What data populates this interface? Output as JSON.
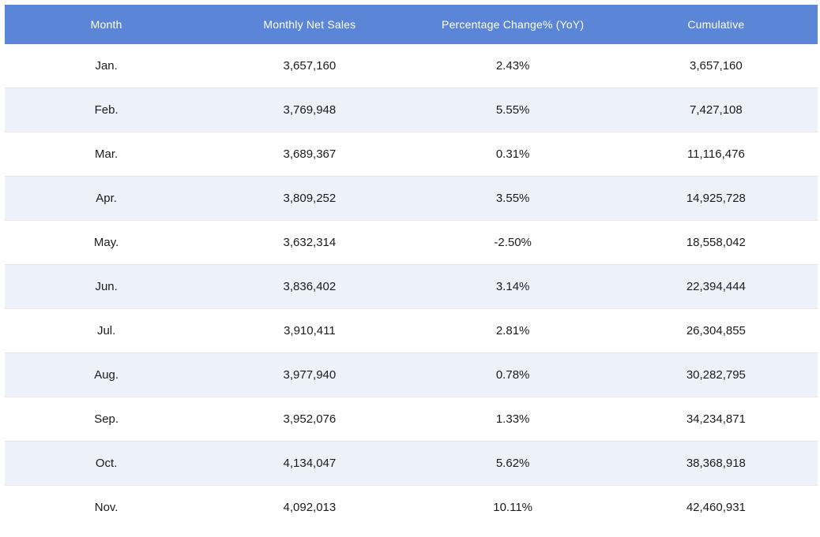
{
  "table": {
    "columns": [
      "Month",
      "Monthly Net Sales",
      "Percentage Change% (YoY)",
      "Cumulative"
    ],
    "rows": [
      [
        "Jan.",
        "3,657,160",
        "2.43%",
        "3,657,160"
      ],
      [
        "Feb.",
        "3,769,948",
        "5.55%",
        "7,427,108"
      ],
      [
        "Mar.",
        "3,689,367",
        "0.31%",
        "11,116,476"
      ],
      [
        "Apr.",
        "3,809,252",
        "3.55%",
        "14,925,728"
      ],
      [
        "May.",
        "3,632,314",
        "-2.50%",
        "18,558,042"
      ],
      [
        "Jun.",
        "3,836,402",
        "3.14%",
        "22,394,444"
      ],
      [
        "Jul.",
        "3,910,411",
        "2.81%",
        "26,304,855"
      ],
      [
        "Aug.",
        "3,977,940",
        "0.78%",
        "30,282,795"
      ],
      [
        "Sep.",
        "3,952,076",
        "1.33%",
        "34,234,871"
      ],
      [
        "Oct.",
        "4,134,047",
        "5.62%",
        "38,368,918"
      ],
      [
        "Nov.",
        "4,092,013",
        "10.11%",
        "42,460,931"
      ]
    ]
  },
  "colors": {
    "header_bg": "#5b86d8",
    "header_text": "#ffffff",
    "row_bg": "#ffffff",
    "row_alt_bg": "#edf1f9",
    "divider": "#e7e7e9",
    "cell_text": "#1b1b1d"
  },
  "chart_data": {
    "type": "table",
    "title": "",
    "columns": [
      "Month",
      "Monthly Net Sales",
      "Percentage Change% (YoY)",
      "Cumulative"
    ],
    "rows": [
      [
        "Jan.",
        3657160,
        2.43,
        3657160
      ],
      [
        "Feb.",
        3769948,
        5.55,
        7427108
      ],
      [
        "Mar.",
        3689367,
        0.31,
        11116476
      ],
      [
        "Apr.",
        3809252,
        3.55,
        14925728
      ],
      [
        "May.",
        3632314,
        -2.5,
        18558042
      ],
      [
        "Jun.",
        3836402,
        3.14,
        22394444
      ],
      [
        "Jul.",
        3910411,
        2.81,
        26304855
      ],
      [
        "Aug.",
        3977940,
        0.78,
        30282795
      ],
      [
        "Sep.",
        3952076,
        1.33,
        34234871
      ],
      [
        "Oct.",
        4134047,
        5.62,
        38368918
      ],
      [
        "Nov.",
        4092013,
        10.11,
        42460931
      ]
    ]
  }
}
